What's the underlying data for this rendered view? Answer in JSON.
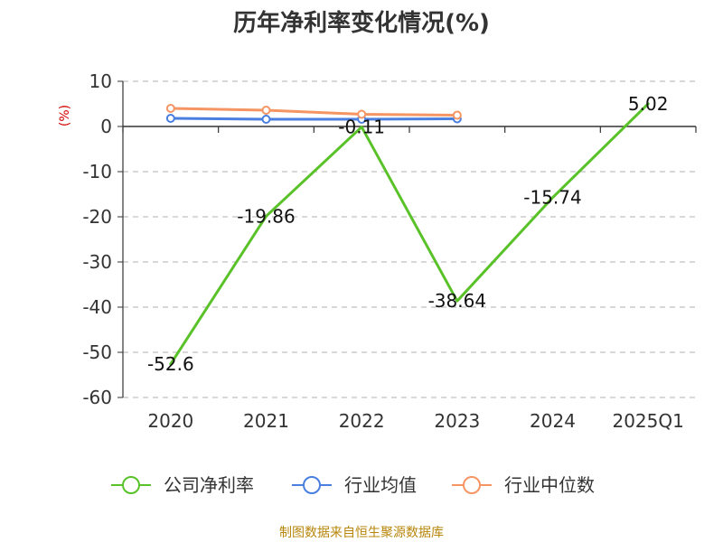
{
  "title": "历年净利率变化情况(%)",
  "unit": "(%)",
  "source": "制图数据来自恒生聚源数据库",
  "chart_data": {
    "type": "line",
    "categories": [
      "2020",
      "2021",
      "2022",
      "2023",
      "2024",
      "2025Q1"
    ],
    "ylim": [
      -60,
      10
    ],
    "yticks": [
      10,
      0,
      -10,
      -20,
      -30,
      -40,
      -50,
      -60
    ],
    "grid": true,
    "legend_position": "bottom",
    "series": [
      {
        "name": "公司净利率",
        "color": "#5ac229",
        "values": [
          -52.6,
          -19.86,
          -0.11,
          -38.64,
          -15.74,
          5.02
        ],
        "labels": [
          "-52.6",
          "-19.86",
          "-0.11",
          "-38.64",
          "-15.74",
          "5.02"
        ],
        "show_markers": false
      },
      {
        "name": "行业均值",
        "color": "#4a7fe0",
        "values": [
          1.8,
          1.6,
          1.6,
          1.7,
          null,
          null
        ],
        "show_markers": true
      },
      {
        "name": "行业中位数",
        "color": "#f59563",
        "values": [
          4.0,
          3.6,
          2.7,
          2.5,
          null,
          null
        ],
        "show_markers": true
      }
    ]
  }
}
